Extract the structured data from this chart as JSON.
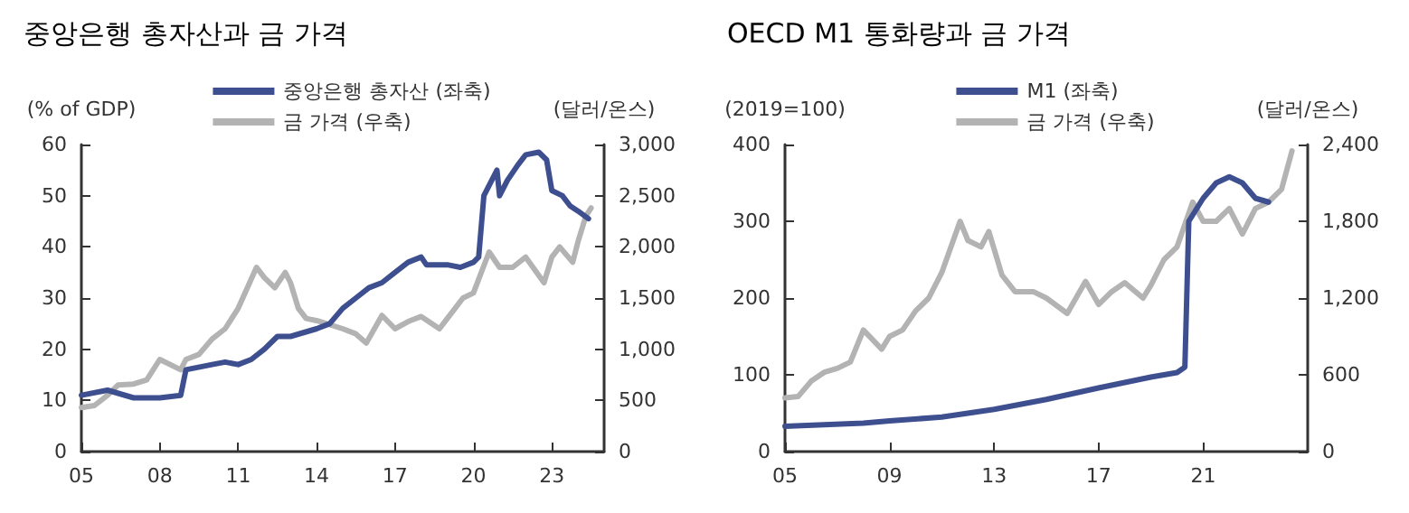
{
  "chart_data": [
    {
      "type": "line",
      "title": "중앙은행 총자산과 금 가격",
      "ylabel": "(% of GDP)",
      "y2label": "(달러/온스)",
      "legend": "top",
      "grid": false,
      "marker": "none",
      "line_style": "solid",
      "xlim": [
        2005,
        2025
      ],
      "xticks": [
        {
          "value": 2005,
          "label": "05"
        },
        {
          "value": 2008,
          "label": "08"
        },
        {
          "value": 2011,
          "label": "11"
        },
        {
          "value": 2014,
          "label": "14"
        },
        {
          "value": 2017,
          "label": "17"
        },
        {
          "value": 2020,
          "label": "20"
        },
        {
          "value": 2023,
          "label": "23"
        }
      ],
      "ylim": [
        0,
        60
      ],
      "yticks": [
        0,
        10,
        20,
        30,
        40,
        50,
        60
      ],
      "y2lim": [
        0,
        3000
      ],
      "y2ticks": [
        0,
        500,
        {
          "value": 1000,
          "label": "1,000"
        },
        {
          "value": 1500,
          "label": "1,500"
        },
        {
          "value": 2000,
          "label": "2,000"
        },
        {
          "value": 2500,
          "label": "2,500"
        },
        {
          "value": 3000,
          "label": "3,000"
        }
      ],
      "series": [
        {
          "name": "중앙은행 총자산 (좌축)",
          "color": "#3d4f8f",
          "x": [
            2005,
            2006,
            2007,
            2008,
            2008.8,
            2009,
            2010,
            2010.5,
            2011,
            2011.5,
            2012,
            2012.5,
            2013,
            2014,
            2014.5,
            2015,
            2015.5,
            2016,
            2016.5,
            2017,
            2017.5,
            2018,
            2018.2,
            2019,
            2019.5,
            2020,
            2020.2,
            2020.4,
            2020.9,
            2021,
            2021.3,
            2021.7,
            2022,
            2022.5,
            2022.8,
            2023,
            2023.4,
            2023.7,
            2024,
            2024.4
          ],
          "values": [
            11,
            12,
            10.5,
            10.5,
            11,
            16,
            17,
            17.5,
            17,
            18,
            20,
            22.5,
            22.5,
            24,
            25,
            28,
            30,
            32,
            33,
            35,
            37,
            38,
            36.5,
            36.5,
            36,
            37,
            38,
            50,
            55,
            50,
            53,
            56,
            58,
            58.5,
            57,
            51,
            50,
            48,
            47,
            45.5
          ]
        },
        {
          "name": "금 가격 (우축)",
          "color": "#b3b3b3",
          "axis": "y2",
          "x": [
            2005,
            2005.5,
            2006,
            2006.4,
            2007,
            2007.5,
            2008,
            2008.8,
            2009,
            2009.5,
            2010,
            2010.5,
            2011,
            2011.7,
            2012,
            2012.4,
            2012.8,
            2013,
            2013.3,
            2013.6,
            2014,
            2015,
            2015.5,
            2015.9,
            2016.5,
            2017,
            2017.5,
            2018,
            2018.7,
            2019,
            2019.6,
            2020,
            2020.6,
            2021,
            2021.5,
            2022,
            2022.7,
            2023,
            2023.3,
            2023.8,
            2024,
            2024.3,
            2024.5
          ],
          "values": [
            430,
            450,
            550,
            650,
            660,
            700,
            900,
            800,
            900,
            950,
            1100,
            1200,
            1400,
            1800,
            1700,
            1600,
            1750,
            1650,
            1400,
            1300,
            1280,
            1200,
            1150,
            1060,
            1330,
            1200,
            1270,
            1320,
            1200,
            1300,
            1500,
            1550,
            1950,
            1800,
            1800,
            1900,
            1650,
            1900,
            2000,
            1850,
            2050,
            2300,
            2380
          ]
        }
      ]
    },
    {
      "type": "line",
      "title": "OECD M1 통화량과 금 가격",
      "ylabel": "(2019=100)",
      "y2label": "(달러/온스)",
      "legend": "top",
      "grid": false,
      "marker": "none",
      "line_style": "solid",
      "xlim": [
        2005,
        2025
      ],
      "xticks": [
        {
          "value": 2005,
          "label": "05"
        },
        {
          "value": 2009,
          "label": "09"
        },
        {
          "value": 2013,
          "label": "13"
        },
        {
          "value": 2017,
          "label": "17"
        },
        {
          "value": 2021,
          "label": "21"
        }
      ],
      "ylim": [
        0,
        400
      ],
      "yticks": [
        0,
        100,
        200,
        300,
        400
      ],
      "y2lim": [
        0,
        2400
      ],
      "y2ticks": [
        0,
        600,
        {
          "value": 1200,
          "label": "1,200"
        },
        {
          "value": 1800,
          "label": "1,800"
        },
        {
          "value": 2400,
          "label": "2,400"
        }
      ],
      "series": [
        {
          "name": "M1 (좌축)",
          "color": "#3d4f8f",
          "x": [
            2005,
            2008,
            2009,
            2011,
            2013,
            2015,
            2017,
            2019,
            2020,
            2020.3,
            2020.45,
            2021,
            2021.5,
            2022,
            2022.5,
            2023,
            2023.5
          ],
          "values": [
            33,
            37,
            40,
            45,
            55,
            68,
            83,
            97,
            103,
            110,
            300,
            330,
            350,
            358,
            350,
            330,
            325
          ]
        },
        {
          "name": "금 가격 (우축)",
          "color": "#b3b3b3",
          "axis": "y2",
          "x": [
            2005,
            2005.5,
            2006,
            2006.5,
            2007,
            2007.5,
            2008,
            2008.7,
            2009,
            2009.5,
            2010,
            2010.5,
            2011,
            2011.7,
            2012,
            2012.5,
            2012.8,
            2013.3,
            2013.8,
            2014.5,
            2015,
            2015.8,
            2016.5,
            2017,
            2017.5,
            2018,
            2018.7,
            2019,
            2019.5,
            2020,
            2020.6,
            2021,
            2021.5,
            2022,
            2022.5,
            2023,
            2023.5,
            2024,
            2024.4
          ],
          "values": [
            420,
            430,
            550,
            620,
            650,
            700,
            950,
            800,
            900,
            950,
            1100,
            1200,
            1400,
            1800,
            1650,
            1600,
            1720,
            1380,
            1250,
            1250,
            1200,
            1080,
            1330,
            1150,
            1250,
            1320,
            1200,
            1300,
            1500,
            1600,
            1950,
            1800,
            1800,
            1900,
            1700,
            1900,
            1950,
            2050,
            2350
          ]
        }
      ]
    }
  ]
}
